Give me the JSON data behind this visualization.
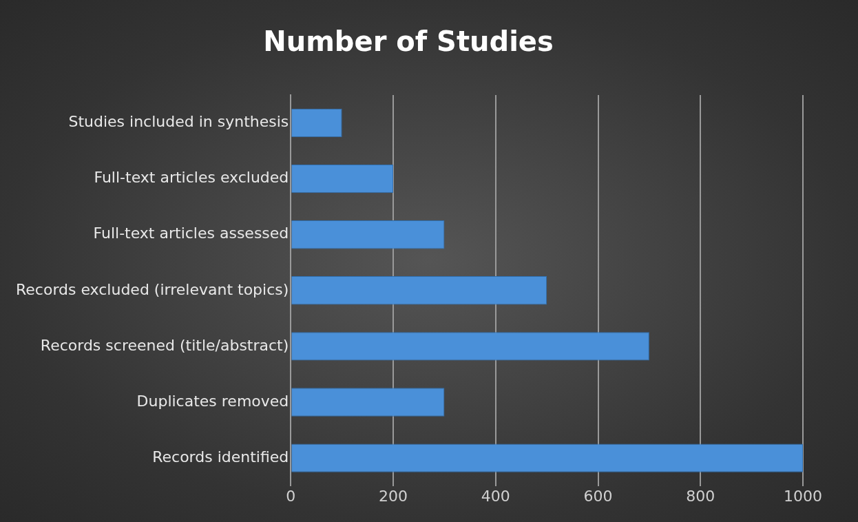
{
  "chart_data": {
    "type": "bar",
    "orientation": "horizontal",
    "title": "Number of Studies",
    "categories": [
      "Studies included in synthesis",
      "Full-text articles excluded",
      "Full-text articles assessed",
      "Records excluded (irrelevant topics)",
      "Records screened (title/abstract)",
      "Duplicates removed",
      "Records identified"
    ],
    "values": [
      100,
      200,
      300,
      500,
      700,
      300,
      1000
    ],
    "color": "#4a90d9",
    "xlim": [
      0,
      1000
    ],
    "xticks": [
      0,
      200,
      400,
      600,
      800,
      1000
    ],
    "grid": "x"
  }
}
